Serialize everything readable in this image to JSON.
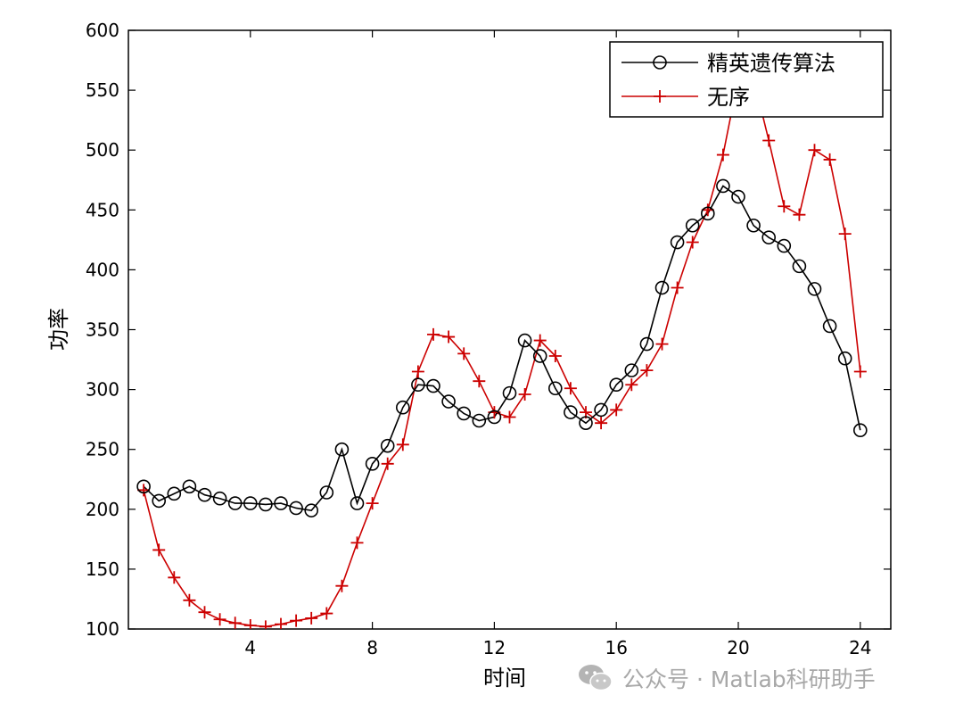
{
  "chart_data": {
    "type": "line",
    "title": "",
    "xlabel": "时间",
    "ylabel": "功率",
    "xlim": [
      0,
      25
    ],
    "ylim": [
      100,
      600
    ],
    "xticks": [
      4,
      8,
      12,
      16,
      20,
      24
    ],
    "yticks": [
      100,
      150,
      200,
      250,
      300,
      350,
      400,
      450,
      500,
      550,
      600
    ],
    "grid": false,
    "legend_position": "top-right",
    "x": [
      0.5,
      1,
      1.5,
      2,
      2.5,
      3,
      3.5,
      4,
      4.5,
      5,
      5.5,
      6,
      6.5,
      7,
      7.5,
      8,
      8.5,
      9,
      9.5,
      10,
      10.5,
      11,
      11.5,
      12,
      12.5,
      13,
      13.5,
      14,
      14.5,
      15,
      15.5,
      16,
      16.5,
      17,
      17.5,
      18,
      18.5,
      19,
      19.5,
      20,
      20.5,
      21,
      21.5,
      22,
      22.5,
      23,
      23.5,
      24
    ],
    "series": [
      {
        "name": "精英遗传算法",
        "color": "#000000",
        "marker": "circle",
        "values": [
          219,
          207,
          213,
          219,
          212,
          209,
          205,
          205,
          204,
          205,
          201,
          199,
          214,
          250,
          205,
          238,
          253,
          285,
          304,
          303,
          290,
          280,
          274,
          277,
          297,
          341,
          328,
          301,
          281,
          272,
          283,
          304,
          316,
          338,
          385,
          423,
          437,
          447,
          470,
          461,
          437,
          427,
          420,
          403,
          384,
          353,
          326,
          266
        ]
      },
      {
        "name": "无序",
        "color": "#cc0000",
        "marker": "plus",
        "values": [
          216,
          166,
          143,
          124,
          114,
          108,
          105,
          103,
          102,
          104,
          107,
          109,
          113,
          136,
          172,
          205,
          238,
          254,
          315,
          346,
          344,
          330,
          307,
          281,
          277,
          296,
          341,
          328,
          301,
          281,
          272,
          283,
          304,
          316,
          338,
          385,
          423,
          450,
          496,
          560,
          560,
          508,
          453,
          446,
          500,
          492,
          430,
          315
        ]
      }
    ]
  },
  "watermark": {
    "icon": "wechat-icon",
    "text": "公众号 · Matlab科研助手"
  }
}
